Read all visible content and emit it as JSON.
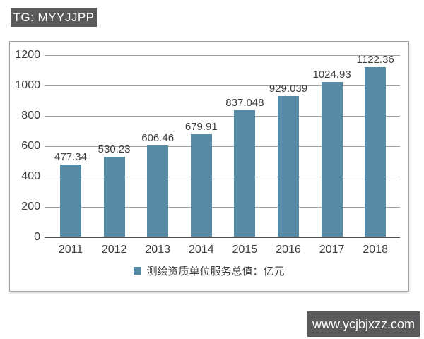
{
  "watermarks": {
    "tg_badge": "TG: MYYJJPP",
    "url_badge": "www.ycjbjxzz.com",
    "badge_bg": "#595a5c",
    "badge_text_color": "#ffffff"
  },
  "chart_data": {
    "type": "bar",
    "title": "",
    "xlabel": "",
    "ylabel": "",
    "categories": [
      "2011",
      "2012",
      "2013",
      "2014",
      "2015",
      "2016",
      "2017",
      "2018"
    ],
    "series": [
      {
        "name": "测绘资质单位服务总值：亿元",
        "values": [
          477.34,
          530.23,
          606.46,
          679.91,
          837.048,
          929.039,
          1024.93,
          1122.36
        ]
      }
    ],
    "value_labels": [
      "477.34",
      "530.23",
      "606.46",
      "679.91",
      "837.048",
      "929.039",
      "1024.93",
      "1122.36"
    ],
    "ylim": [
      0,
      1200
    ],
    "y_ticks": [
      0,
      200,
      400,
      600,
      800,
      1000,
      1200
    ],
    "grid": true,
    "bar_color": "#568aa5",
    "legend": {
      "label": "测绘资质单位服务总值：亿元",
      "position": "bottom",
      "marker_color": "#568aa5"
    }
  }
}
